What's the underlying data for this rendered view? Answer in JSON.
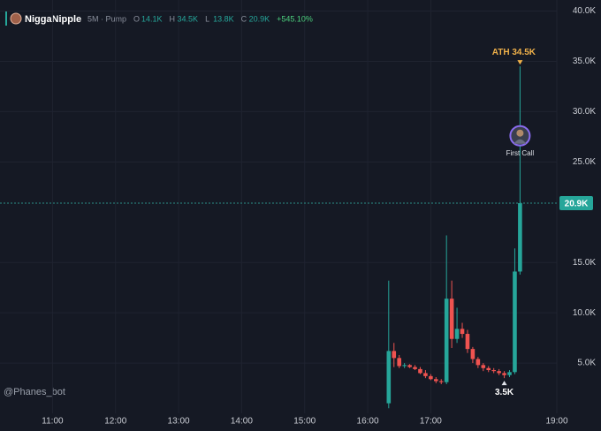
{
  "chart_data": {
    "type": "candlestick",
    "symbol": "NiggaNipple",
    "interval": "5M · Pump",
    "ohlc_header": [
      {
        "key": "O",
        "label": "14.1K"
      },
      {
        "key": "H",
        "label": "34.5K"
      },
      {
        "key": "L",
        "label": "13.8K"
      },
      {
        "key": "C",
        "label": "20.9K"
      }
    ],
    "change": "+545.10%",
    "watermark": "@Phanes_bot",
    "up_color": "#26a69a",
    "down_color": "#ef5350",
    "grid": true,
    "x": [
      "16:20",
      "16:25",
      "16:30",
      "16:35",
      "16:40",
      "16:45",
      "16:50",
      "16:55",
      "17:00",
      "17:05",
      "17:10",
      "17:15",
      "17:20",
      "17:25",
      "17:30",
      "17:35",
      "17:40",
      "17:45",
      "17:50",
      "17:55",
      "18:00",
      "18:05",
      "18:10",
      "18:15",
      "18:20",
      "18:25"
    ],
    "open": [
      1000,
      6200,
      5500,
      4700,
      4800,
      4600,
      4400,
      4000,
      3700,
      3400,
      3200,
      3100,
      11400,
      7400,
      8400,
      7900,
      6400,
      5400,
      4800,
      4500,
      4300,
      4200,
      4000,
      3800,
      4100,
      14100
    ],
    "high": [
      13200,
      7000,
      5800,
      5000,
      4900,
      4800,
      4600,
      4300,
      3900,
      3600,
      3400,
      17700,
      13200,
      10500,
      9000,
      8300,
      6600,
      5600,
      5000,
      4700,
      4500,
      4400,
      4200,
      4300,
      16400,
      34500
    ],
    "low": [
      500,
      4600,
      4500,
      4500,
      4500,
      4300,
      3900,
      3500,
      3300,
      3000,
      2900,
      2900,
      6500,
      7000,
      7500,
      6000,
      5000,
      4500,
      4200,
      4100,
      4000,
      3800,
      3500,
      3600,
      3900,
      13800
    ],
    "close": [
      6200,
      5500,
      4700,
      4800,
      4600,
      4400,
      4000,
      3700,
      3400,
      3200,
      3100,
      11400,
      7400,
      8400,
      7900,
      6400,
      5400,
      4800,
      4500,
      4300,
      4200,
      4000,
      3800,
      4100,
      14100,
      20900
    ],
    "xlim": [
      "10:10",
      "19:00"
    ],
    "xticks": [
      "11:00",
      "12:00",
      "13:00",
      "14:00",
      "15:00",
      "16:00",
      "17:00",
      "19:00"
    ],
    "ylim": [
      0,
      41100
    ],
    "yticks": [
      {
        "value": 5000,
        "label": "5.0K"
      },
      {
        "value": 10000,
        "label": "10.0K"
      },
      {
        "value": 15000,
        "label": "15.0K"
      },
      {
        "value": 25000,
        "label": "25.0K"
      },
      {
        "value": 30000,
        "label": "30.0K"
      },
      {
        "value": 35000,
        "label": "35.0K"
      },
      {
        "value": 40000,
        "label": "40.0K"
      }
    ],
    "last_price": {
      "value": 20900,
      "label": "20.9K"
    },
    "annotations": [
      {
        "text": "ATH 34.5K",
        "x": "18:25",
        "y": 34500,
        "kind": "ath"
      },
      {
        "text": "3.5K",
        "x": "18:10",
        "y": 3500,
        "kind": "low"
      },
      {
        "text": "First Call",
        "x": "18:25",
        "y": 27600,
        "kind": "call"
      }
    ]
  }
}
